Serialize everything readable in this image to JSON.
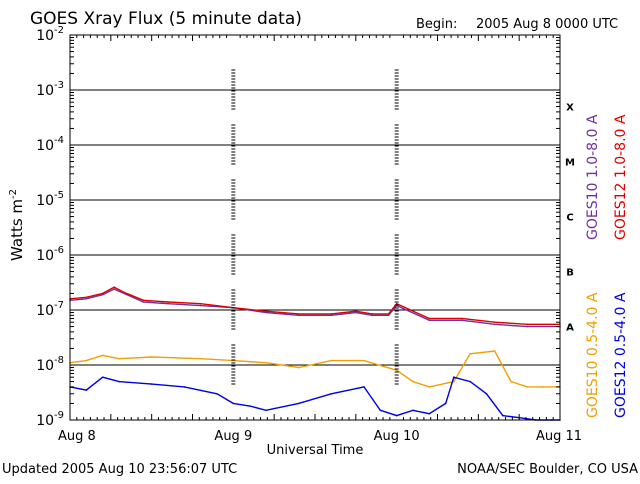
{
  "chart_data": {
    "type": "line",
    "title": "GOES Xray Flux (5 minute data)",
    "begin_label": "Begin:",
    "begin_value": "2005 Aug 8 0000 UTC",
    "xlabel": "Universal Time",
    "ylabel": "Watts m",
    "ylabel_superscript": "-2",
    "footer_left": "Updated 2005 Aug 10 23:56:07 UTC",
    "footer_right": "NOAA/SEC Boulder, CO USA",
    "y_scale": "log",
    "ylim": [
      1e-09,
      0.01
    ],
    "y_ticks": [
      {
        "base": "10",
        "exp": "-9",
        "value": 1e-09
      },
      {
        "base": "10",
        "exp": "-8",
        "value": 1e-08
      },
      {
        "base": "10",
        "exp": "-7",
        "value": 1e-07
      },
      {
        "base": "10",
        "exp": "-6",
        "value": 1e-06
      },
      {
        "base": "10",
        "exp": "-5",
        "value": 1e-05
      },
      {
        "base": "10",
        "exp": "-4",
        "value": 0.0001
      },
      {
        "base": "10",
        "exp": "-3",
        "value": 0.001
      },
      {
        "base": "10",
        "exp": "-2",
        "value": 0.01
      }
    ],
    "x_ticks": [
      "Aug 8",
      "Aug 9",
      "Aug 10",
      "Aug 11"
    ],
    "xlim_days": [
      0,
      3
    ],
    "flare_classes": [
      {
        "label": "A",
        "value": 5e-08
      },
      {
        "label": "B",
        "value": 5e-07
      },
      {
        "label": "C",
        "value": 5e-06
      },
      {
        "label": "M",
        "value": 5e-05
      },
      {
        "label": "X",
        "value": 0.0005
      }
    ],
    "legend_right": [
      {
        "name": "GOES10 1.0-8.0 A",
        "color": "#7030a0"
      },
      {
        "name": "GOES12 1.0-8.0 A",
        "color": "#e00000"
      }
    ],
    "legend_bottom": [
      {
        "name": "GOES10 0.5-4.0 A",
        "color": "#f0a000"
      },
      {
        "name": "GOES12 0.5-4.0 A",
        "color": "#0000e0"
      }
    ],
    "series": [
      {
        "name": "GOES10 1.0-8.0 A",
        "color": "#7030a0",
        "x": [
          0.0,
          0.1,
          0.2,
          0.27,
          0.33,
          0.45,
          0.6,
          0.8,
          1.0,
          1.2,
          1.4,
          1.6,
          1.75,
          1.85,
          1.95,
          2.0,
          2.2,
          2.4,
          2.6,
          2.8,
          3.0
        ],
        "y": [
          1.5e-07,
          1.6e-07,
          1.9e-07,
          2.4e-07,
          2e-07,
          1.4e-07,
          1.3e-07,
          1.2e-07,
          1.1e-07,
          9e-08,
          8e-08,
          8e-08,
          9e-08,
          8e-08,
          8e-08,
          1.2e-07,
          6.5e-08,
          6.5e-08,
          5.5e-08,
          5e-08,
          5e-08
        ]
      },
      {
        "name": "GOES12 1.0-8.0 A",
        "color": "#e00000",
        "x": [
          0.0,
          0.1,
          0.2,
          0.27,
          0.33,
          0.45,
          0.6,
          0.8,
          1.0,
          1.2,
          1.4,
          1.6,
          1.75,
          1.85,
          1.95,
          2.0,
          2.2,
          2.4,
          2.6,
          2.8,
          3.0
        ],
        "y": [
          1.6e-07,
          1.7e-07,
          2e-07,
          2.6e-07,
          2.1e-07,
          1.5e-07,
          1.4e-07,
          1.3e-07,
          1.1e-07,
          9.5e-08,
          8.5e-08,
          8.5e-08,
          9.5e-08,
          8.5e-08,
          8.5e-08,
          1.3e-07,
          7e-08,
          7e-08,
          6e-08,
          5.5e-08,
          5.5e-08
        ]
      },
      {
        "name": "GOES10 0.5-4.0 A",
        "color": "#f0a000",
        "x": [
          0.0,
          0.1,
          0.2,
          0.3,
          0.5,
          0.8,
          1.0,
          1.2,
          1.4,
          1.6,
          1.8,
          2.0,
          2.1,
          2.2,
          2.35,
          2.45,
          2.6,
          2.7,
          2.8,
          2.9,
          3.0
        ],
        "y": [
          1.1e-08,
          1.2e-08,
          1.5e-08,
          1.3e-08,
          1.4e-08,
          1.3e-08,
          1.2e-08,
          1.1e-08,
          9e-09,
          1.2e-08,
          1.2e-08,
          8e-09,
          5e-09,
          4e-09,
          5e-09,
          1.6e-08,
          1.8e-08,
          5e-09,
          4e-09,
          4e-09,
          4e-09
        ]
      },
      {
        "name": "GOES12 0.5-4.0 A",
        "color": "#0000e0",
        "x": [
          0.0,
          0.1,
          0.2,
          0.3,
          0.5,
          0.7,
          0.9,
          1.0,
          1.1,
          1.2,
          1.4,
          1.6,
          1.8,
          1.9,
          2.0,
          2.1,
          2.2,
          2.3,
          2.35,
          2.45,
          2.55,
          2.65,
          2.75,
          2.85,
          2.95,
          3.0
        ],
        "y": [
          4e-09,
          3.5e-09,
          6e-09,
          5e-09,
          4.5e-09,
          4e-09,
          3e-09,
          2e-09,
          1.8e-09,
          1.5e-09,
          2e-09,
          3e-09,
          4e-09,
          1.5e-09,
          1.2e-09,
          1.5e-09,
          1.3e-09,
          2e-09,
          6e-09,
          5e-09,
          3e-09,
          1.2e-09,
          1.1e-09,
          1e-09,
          1e-09,
          1e-09
        ]
      }
    ]
  }
}
